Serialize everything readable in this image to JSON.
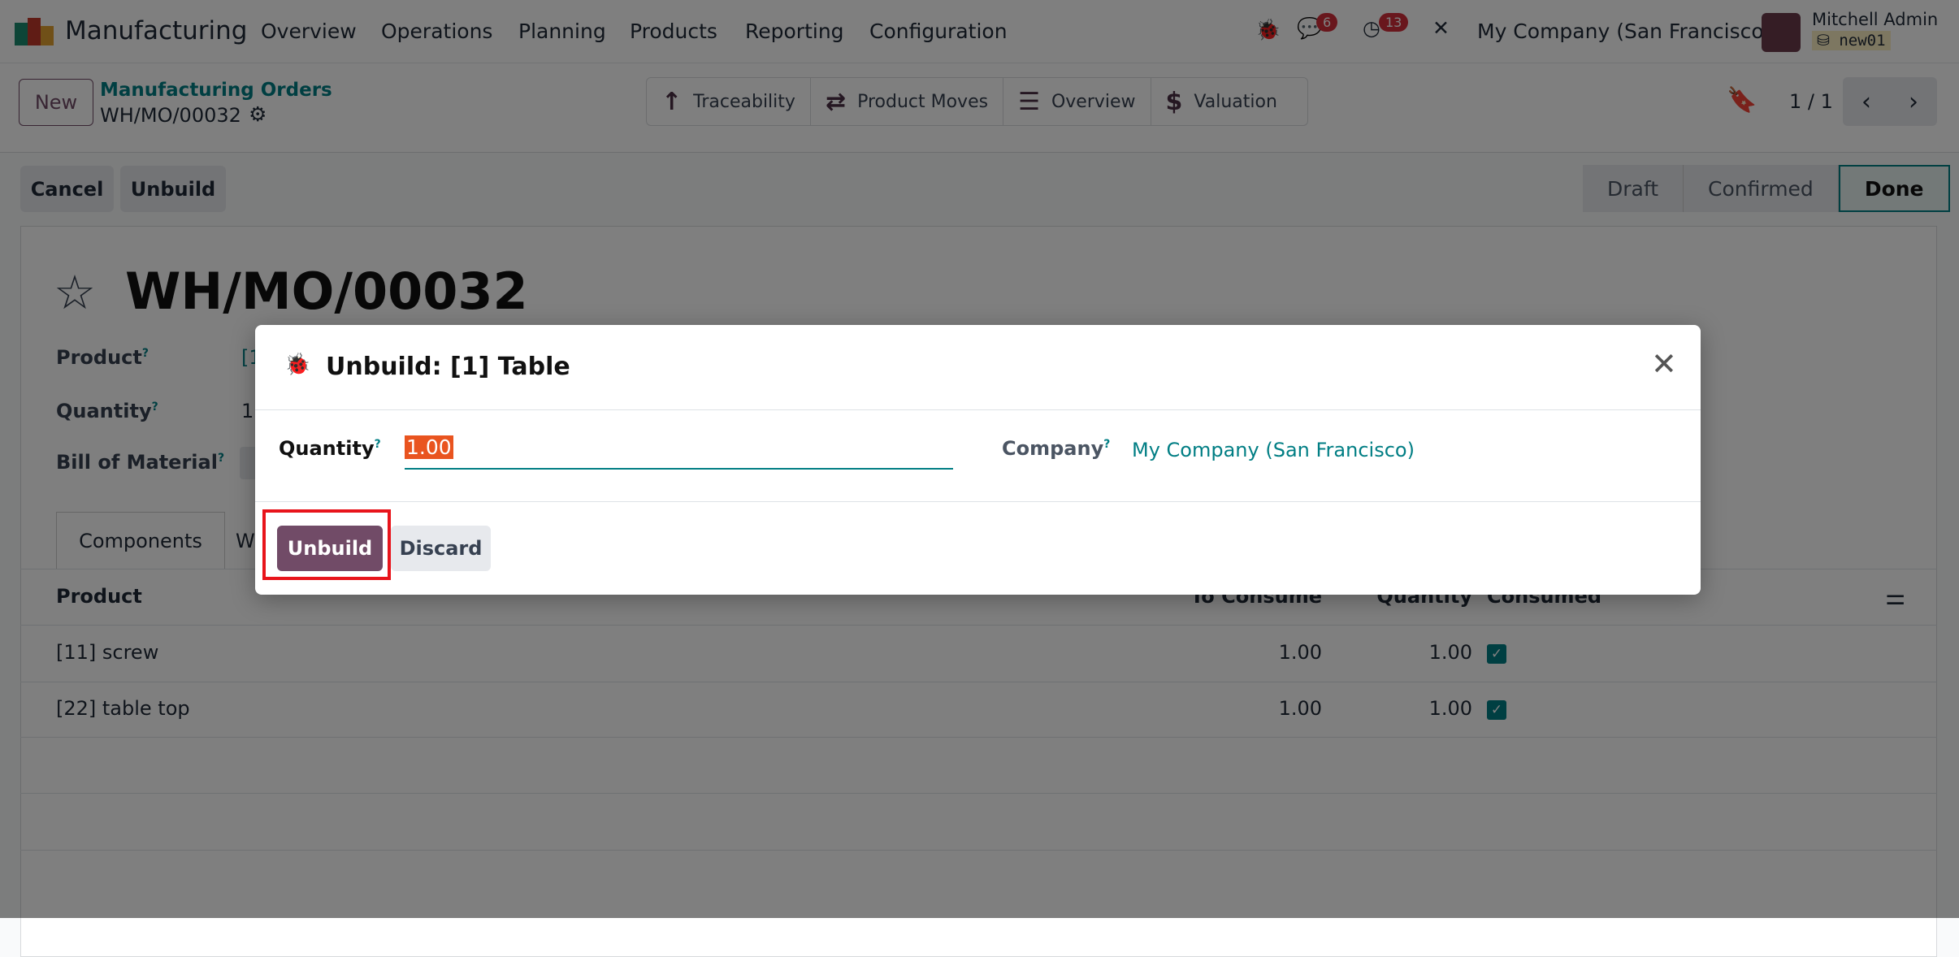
{
  "navbar": {
    "app_name": "Manufacturing",
    "menu": [
      "Overview",
      "Operations",
      "Planning",
      "Products",
      "Reporting",
      "Configuration"
    ],
    "messages_count": "6",
    "activities_count": "13",
    "company": "My Company (San Francisco)",
    "user_name": "Mitchell Admin",
    "database": "new01"
  },
  "control_panel": {
    "new_label": "New",
    "breadcrumb_parent": "Manufacturing Orders",
    "breadcrumb_current": "WH/MO/00032",
    "smart_buttons": [
      "Traceability",
      "Product Moves",
      "Overview",
      "Valuation"
    ],
    "pager": "1 / 1"
  },
  "actions": {
    "cancel": "Cancel",
    "unbuild": "Unbuild"
  },
  "statusbar": {
    "stages": [
      "Draft",
      "Confirmed",
      "Done"
    ],
    "current": "Done"
  },
  "form": {
    "title": "WH/MO/00032",
    "labels": {
      "product": "Product",
      "quantity": "Quantity",
      "bom": "Bill of Material"
    },
    "partial_values": {
      "product": "[1",
      "quantity": "1."
    },
    "tabs": [
      "Components",
      "W"
    ],
    "table": {
      "columns": [
        "Product",
        "To Consume",
        "Quantity",
        "Consumed"
      ],
      "rows": [
        {
          "product": "[11] screw",
          "to_consume": "1.00",
          "quantity": "1.00",
          "consumed": true
        },
        {
          "product": "[22] table top",
          "to_consume": "1.00",
          "quantity": "1.00",
          "consumed": true
        }
      ]
    }
  },
  "dialog": {
    "title": "Unbuild: [1] Table",
    "quantity_label": "Quantity",
    "quantity_value": "1.00",
    "company_label": "Company",
    "company_value": "My Company (San Francisco)",
    "confirm": "Unbuild",
    "discard": "Discard"
  },
  "colors": {
    "primary": "#714b67",
    "teal": "#017e84",
    "highlight": "#e9541f",
    "annotation": "#e8141b"
  }
}
